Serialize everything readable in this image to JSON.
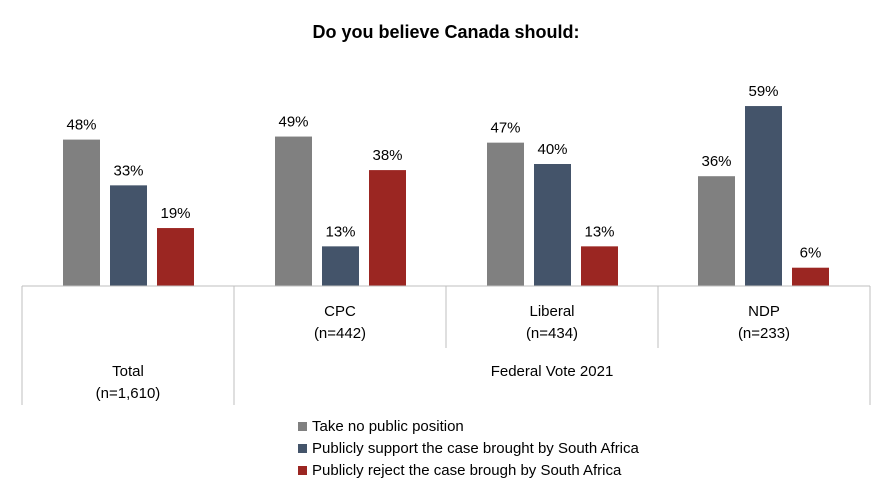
{
  "chart_data": {
    "type": "bar",
    "title": "Do you believe Canada should:",
    "groups": [
      {
        "label": "Total",
        "sublabel": "(n=1,610)",
        "values": [
          48,
          33,
          19
        ]
      },
      {
        "label": "CPC",
        "sublabel": "(n=442)",
        "values": [
          49,
          13,
          38
        ]
      },
      {
        "label": "Liberal",
        "sublabel": "(n=434)",
        "values": [
          47,
          40,
          13
        ]
      },
      {
        "label": "NDP",
        "sublabel": "(n=233)",
        "values": [
          36,
          59,
          6
        ]
      }
    ],
    "category_group_label": "Federal Vote 2021",
    "series": [
      {
        "name": "Take no public position",
        "color": "#808080"
      },
      {
        "name": "Publicly support the case brought by South Africa",
        "color": "#44546A"
      },
      {
        "name": "Publicly reject the case brough by South Africa",
        "color": "#9B2622"
      }
    ],
    "value_suffix": "%",
    "ylim": [
      0,
      60
    ],
    "grid": false,
    "legend_position": "bottom"
  }
}
